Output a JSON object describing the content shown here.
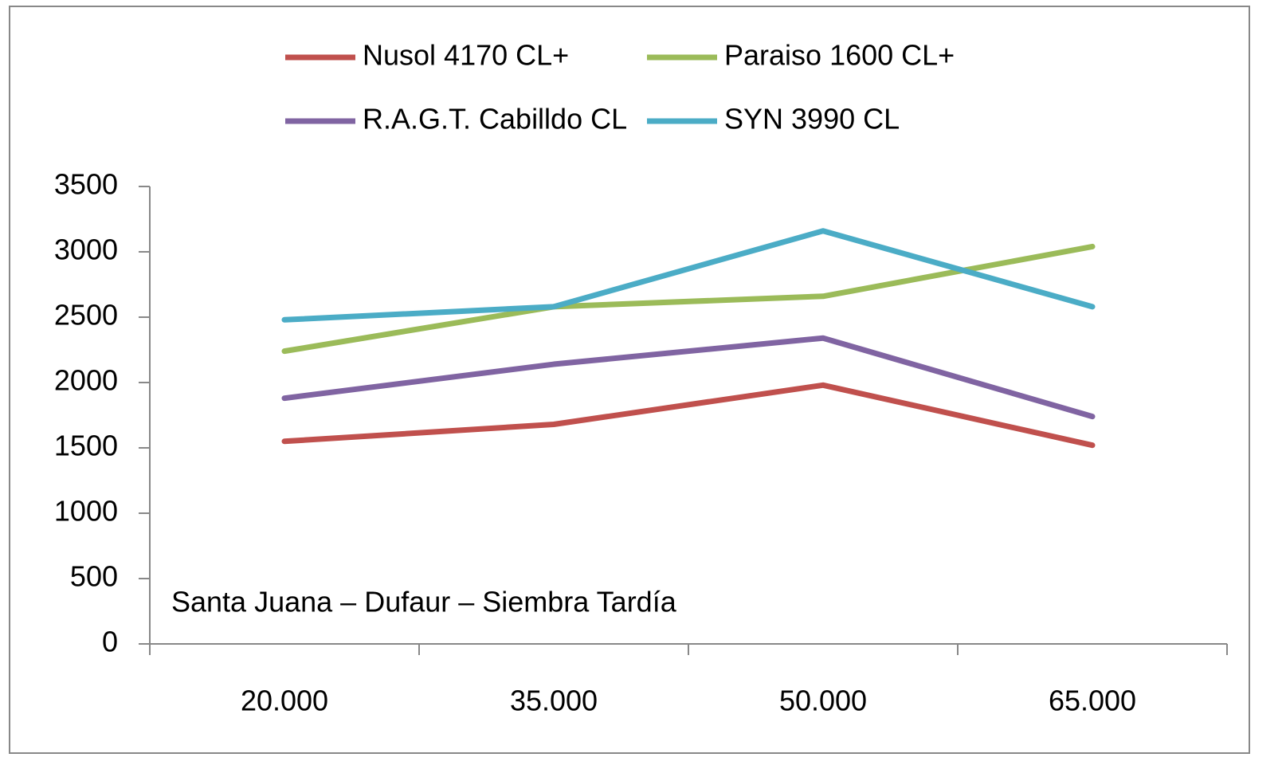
{
  "chart_data": {
    "type": "line",
    "annotation": "Santa Juana – Dufaur – Siembra Tardía",
    "categories": [
      "20.000",
      "35.000",
      "50.000",
      "65.000"
    ],
    "series": [
      {
        "name": "Nusol 4170 CL+",
        "color": "#c0504d",
        "values": [
          1550,
          1680,
          1980,
          1520
        ]
      },
      {
        "name": "Paraiso 1600 CL+",
        "color": "#9bbb59",
        "values": [
          2240,
          2580,
          2660,
          3040
        ]
      },
      {
        "name": "R.A.G.T. Cabilldo  CL",
        "color": "#8064a2",
        "values": [
          1880,
          2140,
          2340,
          1740
        ]
      },
      {
        "name": "SYN 3990 CL",
        "color": "#4bacc6",
        "values": [
          2480,
          2580,
          3160,
          2580
        ]
      }
    ],
    "ylim": [
      0,
      3500
    ],
    "yticks": [
      0,
      500,
      1000,
      1500,
      2000,
      2500,
      3000,
      3500
    ],
    "grid": false,
    "legend": "top"
  }
}
